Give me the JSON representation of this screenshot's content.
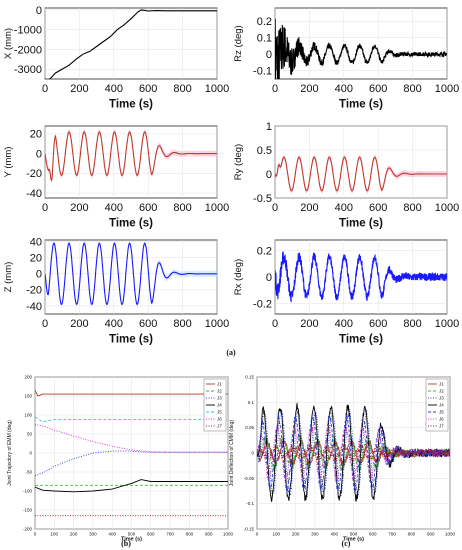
{
  "figure": {
    "labels": [
      "(a)",
      "(b)",
      "(c)"
    ]
  },
  "chart_data": [
    {
      "type": "line",
      "xlabel": "Time (s)",
      "ylabel": "X (mm)",
      "xlim": [
        0,
        1000
      ],
      "ylim": [
        -3500,
        100
      ],
      "xticks": [
        "0",
        "200",
        "400",
        "600",
        "800",
        "1000"
      ],
      "yticks": [
        "0",
        "-1000",
        "-2000",
        "-3000"
      ],
      "grid": true,
      "series": [
        {
          "color": "#000000",
          "x": [
            0,
            20,
            40,
            60,
            100,
            140,
            180,
            220,
            260,
            300,
            340,
            380,
            420,
            460,
            500,
            540,
            560,
            580,
            600,
            650,
            700,
            800,
            900,
            1000
          ],
          "y": [
            -3500,
            -3550,
            -3400,
            -3200,
            -3000,
            -2800,
            -2500,
            -2250,
            -2100,
            -1850,
            -1600,
            -1350,
            -1000,
            -750,
            -450,
            -100,
            0,
            -20,
            -50,
            -30,
            -40,
            -40,
            -40,
            -40
          ]
        }
      ]
    },
    {
      "type": "line",
      "xlabel": "Time (s)",
      "ylabel": "Rz (deg)",
      "xlim": [
        0,
        1000
      ],
      "ylim": [
        -0.15,
        0.28
      ],
      "xticks": [
        "0",
        "200",
        "400",
        "600",
        "800",
        "1000"
      ],
      "yticks": [
        "0.2",
        "0.1",
        "0",
        "-0.1"
      ],
      "grid": true,
      "series": [
        {
          "color": "#000000",
          "shape": "damped-oscillation",
          "period_s": 88,
          "center": 0.0,
          "amplitude": 0.05,
          "noise_start": 0.25,
          "noise_end": 0.012,
          "decay_after_s": 620
        }
      ]
    },
    {
      "type": "line",
      "xlabel": "Time (s)",
      "ylabel": "Y (mm)",
      "xlim": [
        0,
        1000
      ],
      "ylim": [
        -45,
        28
      ],
      "xticks": [
        "0",
        "200",
        "400",
        "600",
        "800",
        "1000"
      ],
      "yticks": [
        "20",
        "0",
        "-20",
        "-40"
      ],
      "grid": true,
      "series": [
        {
          "color": "#c0392b",
          "band_color": "#f6b6d6",
          "shape": "damped-oscillation",
          "period_s": 88,
          "center": 0,
          "amplitude": 22,
          "start_dip": -40,
          "decay_after_s": 620
        }
      ]
    },
    {
      "type": "line",
      "xlabel": "Time (s)",
      "ylabel": "Ry (deg)",
      "xlim": [
        0,
        1000
      ],
      "ylim": [
        -0.5,
        1.0
      ],
      "xticks": [
        "0",
        "200",
        "400",
        "600",
        "800",
        "1000"
      ],
      "yticks": [
        "1",
        "0.5",
        "0",
        "-0.5"
      ],
      "grid": true,
      "series": [
        {
          "color": "#c0392b",
          "band_color": "#f6b6d6",
          "shape": "damped-oscillation",
          "period_s": 88,
          "center": 0,
          "amplitude": 0.35,
          "start_peak": 0.75,
          "decay_after_s": 620
        }
      ]
    },
    {
      "type": "line",
      "xlabel": "Time (s)",
      "ylabel": "Z (mm)",
      "xlim": [
        0,
        1000
      ],
      "ylim": [
        -50,
        42
      ],
      "xticks": [
        "0",
        "200",
        "400",
        "600",
        "800",
        "1000"
      ],
      "yticks": [
        "40",
        "20",
        "0",
        "-20",
        "-40"
      ],
      "grid": true,
      "series": [
        {
          "color": "#1a1aff",
          "band_color": "#bfe0ff",
          "shape": "damped-oscillation",
          "period_s": 88,
          "center": 0,
          "amplitude": 38,
          "growth": 0.985,
          "decay_after_s": 620
        }
      ]
    },
    {
      "type": "line",
      "xlabel": "Time (s)",
      "ylabel": "Rx (deg)",
      "xlim": [
        0,
        1000
      ],
      "ylim": [
        -0.28,
        0.28
      ],
      "xticks": [
        "0",
        "200",
        "400",
        "600",
        "800",
        "1000"
      ],
      "yticks": [
        "0.2",
        "0",
        "-0.2"
      ],
      "grid": true,
      "series": [
        {
          "color": "#1a1aff",
          "shape": "damped-oscillation",
          "period_s": 88,
          "center": 0,
          "amplitude": 0.15,
          "noise_start": 0.05,
          "noise_end": 0.03,
          "decay_after_s": 620
        }
      ]
    },
    {
      "type": "line",
      "xlabel": "Time (s)",
      "ylabel": "Joint Trajectory of EMM (deg)",
      "xlim": [
        0,
        1000
      ],
      "ylim": [
        -200,
        200
      ],
      "xticks": [
        "0",
        "100",
        "200",
        "300",
        "400",
        "500",
        "600",
        "700",
        "800",
        "900",
        "1000"
      ],
      "yticks": [
        "200",
        "150",
        "100",
        "50",
        "0",
        "-50",
        "-100",
        "-150",
        "-200"
      ],
      "grid": true,
      "legend": "top-right",
      "series": [
        {
          "name": "J1",
          "color": "#b03a2e",
          "dash": "solid",
          "x": [
            0,
            15,
            40,
            100,
            1000
          ],
          "y": [
            165,
            150,
            155,
            155,
            155
          ]
        },
        {
          "name": "J2",
          "color": "#3fb648",
          "dash": "dashed",
          "x": [
            0,
            1000
          ],
          "y": [
            -85,
            -85
          ]
        },
        {
          "name": "J3",
          "color": "#2b3fcf",
          "dash": "dotted",
          "x": [
            0,
            50,
            100,
            200,
            300,
            400,
            500,
            550,
            600,
            1000
          ],
          "y": [
            -60,
            -50,
            -35,
            -15,
            0,
            5,
            5,
            3,
            2,
            2
          ]
        },
        {
          "name": "J4",
          "color": "#000000",
          "dash": "solid",
          "x": [
            0,
            40,
            100,
            200,
            300,
            400,
            500,
            550,
            600,
            700,
            1000
          ],
          "y": [
            -90,
            -98,
            -100,
            -102,
            -100,
            -95,
            -80,
            -70,
            -75,
            -75,
            -75
          ]
        },
        {
          "name": "J5",
          "color": "#2ec4e8",
          "dash": "dashed",
          "x": [
            0,
            40,
            100,
            1000
          ],
          "y": [
            95,
            82,
            88,
            88
          ]
        },
        {
          "name": "J6",
          "color": "#d42ad4",
          "dash": "dotted",
          "x": [
            0,
            50,
            100,
            200,
            300,
            400,
            500,
            600,
            700,
            1000
          ],
          "y": [
            75,
            70,
            60,
            45,
            30,
            18,
            8,
            3,
            2,
            2
          ]
        },
        {
          "name": "J7",
          "color": "#8b1d1d",
          "dash": "dotted",
          "x": [
            0,
            1000
          ],
          "y": [
            -165,
            -165
          ]
        }
      ]
    },
    {
      "type": "line",
      "xlabel": "Time (s)",
      "ylabel": "Joint Deflection of CMM (deg)",
      "xlim": [
        0,
        1000
      ],
      "ylim": [
        -0.15,
        0.15
      ],
      "xticks": [
        "0",
        "100",
        "200",
        "300",
        "400",
        "500",
        "600",
        "700",
        "800",
        "900",
        "1000"
      ],
      "yticks": [
        "0.15",
        "0.1",
        "0.05",
        "0",
        "-0.05",
        "-0.1",
        "-0.15"
      ],
      "grid": true,
      "legend": "top-right",
      "series": [
        {
          "name": "J1",
          "color": "#b03a2e",
          "dash": "solid",
          "amplitude": 0.02
        },
        {
          "name": "J2",
          "color": "#3fb648",
          "dash": "dashed",
          "amplitude": 0.03
        },
        {
          "name": "J3",
          "color": "#2b3fcf",
          "dash": "dotted",
          "amplitude": 0.08
        },
        {
          "name": "J4",
          "color": "#000000",
          "dash": "solid",
          "amplitude": 0.09
        },
        {
          "name": "J5",
          "color": "#2b3fcf",
          "dash": "dashed",
          "amplitude": 0.07
        },
        {
          "name": "J6",
          "color": "#d42ad4",
          "dash": "dotted",
          "amplitude": 0.05
        },
        {
          "name": "J7",
          "color": "#8b1d1d",
          "dash": "dotted",
          "amplitude": 0.01
        }
      ]
    }
  ]
}
